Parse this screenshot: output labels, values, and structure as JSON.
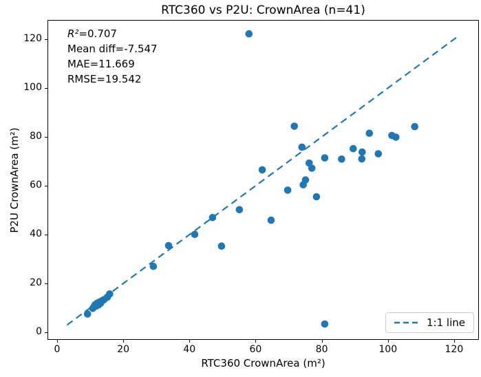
{
  "colors": {
    "accent": "#1f77b4",
    "spine": "#000000",
    "legend_border": "#cccccc",
    "text": "#000000"
  },
  "stats_box": {
    "r2_var": "R²",
    "r2_eq": "=0.707",
    "lines": [
      "Mean diff=-7.547",
      "MAE=11.669",
      "RMSE=19.542"
    ]
  },
  "legend": {
    "label": "1:1 line"
  },
  "chart_data": {
    "type": "scatter",
    "title": "RTC360 vs P2U: CrownArea (n=41)",
    "xlabel": "RTC360 CrownArea (m²)",
    "ylabel": "P2U CrownArea (m²)",
    "n": 41,
    "xlim": [
      -2.7,
      127.3
    ],
    "ylim": [
      -2.8,
      127.6
    ],
    "x_ticks": [
      0,
      20,
      40,
      60,
      80,
      100,
      120
    ],
    "y_ticks": [
      0,
      20,
      40,
      60,
      80,
      100,
      120
    ],
    "grid": false,
    "legend_position": "lower right",
    "stats": {
      "r2": 0.707,
      "mean_diff": -7.547,
      "mae": 11.669,
      "rmse": 19.542
    },
    "identity_line": {
      "label": "1:1 line",
      "style": "dashed",
      "x1": 3,
      "y1": 3,
      "x2": 121.5,
      "y2": 121.5
    },
    "points": [
      [
        9.2,
        7.5
      ],
      [
        10.8,
        9.8
      ],
      [
        11.2,
        10.5
      ],
      [
        11.5,
        11.3
      ],
      [
        11.9,
        10.8
      ],
      [
        12.1,
        11.9
      ],
      [
        12.5,
        11.2
      ],
      [
        12.8,
        12.4
      ],
      [
        13.2,
        12.0
      ],
      [
        13.7,
        13.0
      ],
      [
        14.2,
        13.4
      ],
      [
        15.2,
        14.4
      ],
      [
        15.9,
        15.7
      ],
      [
        29.1,
        27.0
      ],
      [
        33.7,
        35.5
      ],
      [
        41.6,
        40.1
      ],
      [
        47.0,
        47.0
      ],
      [
        49.7,
        35.3
      ],
      [
        55.1,
        50.2
      ],
      [
        58.0,
        122.2
      ],
      [
        62.0,
        66.5
      ],
      [
        64.7,
        45.9
      ],
      [
        69.7,
        58.2
      ],
      [
        71.7,
        84.4
      ],
      [
        74.0,
        75.8
      ],
      [
        74.4,
        60.4
      ],
      [
        75.1,
        62.4
      ],
      [
        76.2,
        69.3
      ],
      [
        77.0,
        67.2
      ],
      [
        78.4,
        55.5
      ],
      [
        80.9,
        71.4
      ],
      [
        80.9,
        3.4
      ],
      [
        86.0,
        70.9
      ],
      [
        89.5,
        75.2
      ],
      [
        92.1,
        71.0
      ],
      [
        92.2,
        73.8
      ],
      [
        94.4,
        81.5
      ],
      [
        97.1,
        73.1
      ],
      [
        101.2,
        80.6
      ],
      [
        102.4,
        79.9
      ],
      [
        108.1,
        84.2
      ]
    ]
  }
}
